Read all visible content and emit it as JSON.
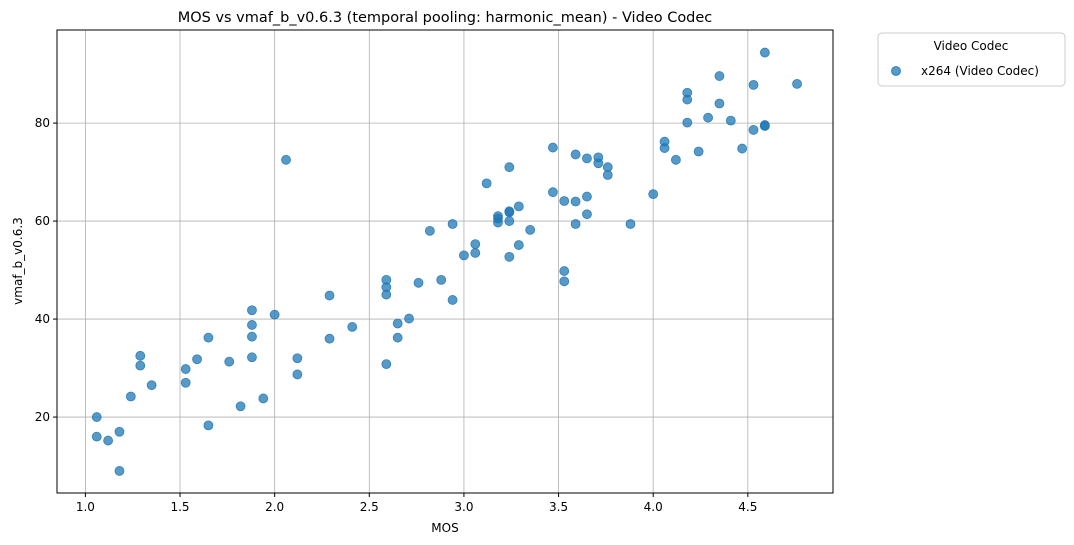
{
  "chart_data": {
    "type": "scatter",
    "title": "MOS vs vmaf_b_v0.6.3 (temporal pooling: harmonic_mean) - Video Codec",
    "xlabel": "MOS",
    "ylabel": "vmaf_b_v0.6.3",
    "xlim": [
      0.85,
      4.95
    ],
    "ylim": [
      4.5,
      99
    ],
    "xticks": [
      1.0,
      1.5,
      2.0,
      2.5,
      3.0,
      3.5,
      4.0,
      4.5
    ],
    "xtick_labels": [
      "1.0",
      "1.5",
      "2.0",
      "2.5",
      "3.0",
      "3.5",
      "4.0",
      "4.5"
    ],
    "yticks": [
      20,
      40,
      60,
      80
    ],
    "ytick_labels": [
      "20",
      "40",
      "60",
      "80"
    ],
    "grid": true,
    "legend_position": "outside-top-right",
    "legend_title": "Video Codec",
    "series": [
      {
        "name": "x264 (Video Codec)",
        "color": "#1f77b4",
        "points": [
          [
            1.06,
            20.0
          ],
          [
            1.06,
            16.0
          ],
          [
            1.12,
            15.2
          ],
          [
            1.18,
            17.0
          ],
          [
            1.18,
            9.0
          ],
          [
            1.24,
            24.2
          ],
          [
            1.29,
            32.5
          ],
          [
            1.29,
            30.5
          ],
          [
            1.35,
            26.5
          ],
          [
            1.53,
            29.8
          ],
          [
            1.53,
            27.0
          ],
          [
            1.59,
            31.8
          ],
          [
            1.65,
            36.2
          ],
          [
            1.65,
            18.3
          ],
          [
            1.76,
            31.3
          ],
          [
            1.82,
            22.2
          ],
          [
            1.88,
            41.8
          ],
          [
            1.88,
            38.8
          ],
          [
            1.88,
            36.4
          ],
          [
            1.88,
            32.2
          ],
          [
            1.94,
            23.8
          ],
          [
            2.0,
            40.9
          ],
          [
            2.06,
            72.5
          ],
          [
            2.12,
            32.0
          ],
          [
            2.12,
            28.7
          ],
          [
            2.29,
            44.8
          ],
          [
            2.29,
            36.0
          ],
          [
            2.41,
            38.4
          ],
          [
            2.59,
            48.0
          ],
          [
            2.59,
            46.5
          ],
          [
            2.59,
            45.0
          ],
          [
            2.59,
            30.8
          ],
          [
            2.65,
            39.1
          ],
          [
            2.65,
            36.2
          ],
          [
            2.71,
            40.1
          ],
          [
            2.76,
            47.4
          ],
          [
            2.82,
            58.0
          ],
          [
            2.88,
            48.0
          ],
          [
            2.94,
            59.4
          ],
          [
            2.94,
            43.9
          ],
          [
            3.0,
            53.0
          ],
          [
            3.06,
            55.3
          ],
          [
            3.06,
            53.5
          ],
          [
            3.12,
            67.7
          ],
          [
            3.18,
            61.0
          ],
          [
            3.18,
            60.5
          ],
          [
            3.18,
            59.7
          ],
          [
            3.24,
            71.0
          ],
          [
            3.24,
            62.0
          ],
          [
            3.24,
            61.8
          ],
          [
            3.24,
            60.0
          ],
          [
            3.24,
            52.7
          ],
          [
            3.29,
            63.0
          ],
          [
            3.29,
            55.1
          ],
          [
            3.35,
            58.2
          ],
          [
            3.47,
            75.0
          ],
          [
            3.47,
            65.9
          ],
          [
            3.53,
            64.1
          ],
          [
            3.53,
            49.8
          ],
          [
            3.53,
            47.7
          ],
          [
            3.59,
            73.6
          ],
          [
            3.59,
            64.0
          ],
          [
            3.59,
            59.4
          ],
          [
            3.65,
            72.8
          ],
          [
            3.65,
            65.0
          ],
          [
            3.65,
            61.4
          ],
          [
            3.71,
            73.0
          ],
          [
            3.71,
            71.8
          ],
          [
            3.76,
            71.0
          ],
          [
            3.76,
            69.4
          ],
          [
            3.88,
            59.4
          ],
          [
            4.0,
            65.5
          ],
          [
            4.06,
            76.2
          ],
          [
            4.06,
            74.9
          ],
          [
            4.12,
            72.5
          ],
          [
            4.18,
            86.2
          ],
          [
            4.18,
            84.8
          ],
          [
            4.18,
            80.1
          ],
          [
            4.24,
            74.2
          ],
          [
            4.29,
            81.1
          ],
          [
            4.35,
            89.6
          ],
          [
            4.35,
            84.0
          ],
          [
            4.41,
            80.5
          ],
          [
            4.47,
            74.8
          ],
          [
            4.53,
            87.8
          ],
          [
            4.53,
            78.6
          ],
          [
            4.59,
            94.4
          ],
          [
            4.59,
            79.6
          ],
          [
            4.59,
            79.4
          ],
          [
            4.76,
            88.0
          ]
        ]
      }
    ]
  }
}
